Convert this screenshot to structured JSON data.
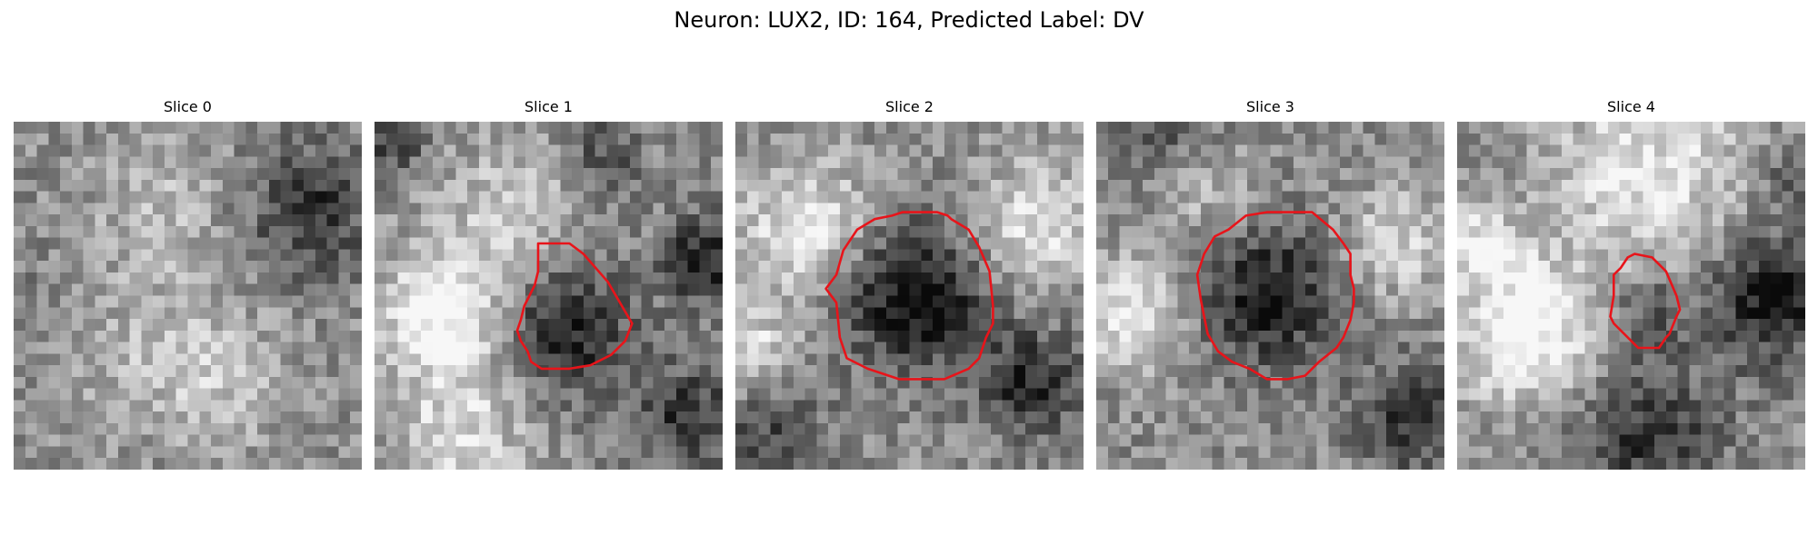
{
  "figure": {
    "title": "Neuron: LUX2, ID: 164, Predicted Label: DV"
  },
  "slices": [
    {
      "label": "Slice 0",
      "has_roi": false,
      "seed": 11,
      "dark_blobs": [
        [
          0.85,
          0.25,
          0.18,
          0.35
        ],
        [
          0.15,
          0.55,
          0.2,
          0.15
        ],
        [
          0.5,
          0.3,
          0.25,
          0.1
        ]
      ],
      "bright_blobs": [
        [
          0.45,
          0.25,
          0.22,
          0.25
        ],
        [
          0.3,
          0.6,
          0.25,
          0.2
        ],
        [
          0.6,
          0.75,
          0.2,
          0.2
        ]
      ],
      "roi": []
    },
    {
      "label": "Slice 1",
      "has_roi": true,
      "seed": 23,
      "dark_blobs": [
        [
          0.65,
          0.1,
          0.12,
          0.25
        ],
        [
          0.95,
          0.4,
          0.12,
          0.45
        ],
        [
          0.55,
          0.6,
          0.18,
          0.45
        ],
        [
          0.9,
          0.85,
          0.15,
          0.35
        ],
        [
          0.05,
          0.05,
          0.1,
          0.3
        ]
      ],
      "bright_blobs": [
        [
          0.2,
          0.55,
          0.18,
          0.5
        ],
        [
          0.4,
          0.25,
          0.2,
          0.25
        ],
        [
          0.25,
          0.9,
          0.2,
          0.3
        ]
      ],
      "roi": [
        [
          0.47,
          0.35
        ],
        [
          0.56,
          0.35
        ],
        [
          0.6,
          0.38
        ],
        [
          0.67,
          0.46
        ],
        [
          0.74,
          0.58
        ],
        [
          0.72,
          0.63
        ],
        [
          0.68,
          0.67
        ],
        [
          0.62,
          0.7
        ],
        [
          0.56,
          0.71
        ],
        [
          0.48,
          0.71
        ],
        [
          0.45,
          0.69
        ],
        [
          0.44,
          0.66
        ],
        [
          0.42,
          0.63
        ],
        [
          0.41,
          0.6
        ],
        [
          0.42,
          0.57
        ],
        [
          0.43,
          0.53
        ],
        [
          0.46,
          0.47
        ],
        [
          0.47,
          0.43
        ]
      ]
    },
    {
      "label": "Slice 2",
      "has_roi": true,
      "seed": 37,
      "dark_blobs": [
        [
          0.52,
          0.5,
          0.2,
          0.55
        ],
        [
          0.85,
          0.75,
          0.15,
          0.4
        ],
        [
          0.1,
          0.9,
          0.15,
          0.25
        ]
      ],
      "bright_blobs": [
        [
          0.2,
          0.3,
          0.2,
          0.35
        ],
        [
          0.85,
          0.3,
          0.18,
          0.35
        ],
        [
          0.05,
          0.65,
          0.12,
          0.3
        ]
      ],
      "roi": [
        [
          0.48,
          0.26
        ],
        [
          0.58,
          0.26
        ],
        [
          0.61,
          0.27
        ],
        [
          0.62,
          0.28
        ],
        [
          0.67,
          0.31
        ],
        [
          0.7,
          0.36
        ],
        [
          0.73,
          0.43
        ],
        [
          0.74,
          0.53
        ],
        [
          0.74,
          0.58
        ],
        [
          0.72,
          0.62
        ],
        [
          0.7,
          0.68
        ],
        [
          0.67,
          0.71
        ],
        [
          0.6,
          0.74
        ],
        [
          0.47,
          0.74
        ],
        [
          0.38,
          0.71
        ],
        [
          0.32,
          0.68
        ],
        [
          0.3,
          0.62
        ],
        [
          0.29,
          0.52
        ],
        [
          0.26,
          0.48
        ],
        [
          0.29,
          0.44
        ],
        [
          0.31,
          0.37
        ],
        [
          0.35,
          0.31
        ],
        [
          0.4,
          0.28
        ],
        [
          0.45,
          0.27
        ]
      ]
    },
    {
      "label": "Slice 3",
      "has_roi": true,
      "seed": 53,
      "dark_blobs": [
        [
          0.5,
          0.5,
          0.2,
          0.45
        ],
        [
          0.9,
          0.85,
          0.15,
          0.35
        ],
        [
          0.2,
          0.05,
          0.15,
          0.2
        ]
      ],
      "bright_blobs": [
        [
          0.1,
          0.55,
          0.15,
          0.4
        ],
        [
          0.85,
          0.35,
          0.15,
          0.3
        ],
        [
          0.3,
          0.2,
          0.15,
          0.2
        ]
      ],
      "roi": [
        [
          0.49,
          0.26
        ],
        [
          0.62,
          0.26
        ],
        [
          0.68,
          0.31
        ],
        [
          0.71,
          0.35
        ],
        [
          0.73,
          0.38
        ],
        [
          0.73,
          0.44
        ],
        [
          0.74,
          0.48
        ],
        [
          0.74,
          0.52
        ],
        [
          0.73,
          0.57
        ],
        [
          0.71,
          0.62
        ],
        [
          0.69,
          0.65
        ],
        [
          0.64,
          0.69
        ],
        [
          0.6,
          0.73
        ],
        [
          0.55,
          0.74
        ],
        [
          0.49,
          0.74
        ],
        [
          0.44,
          0.71
        ],
        [
          0.39,
          0.69
        ],
        [
          0.35,
          0.66
        ],
        [
          0.32,
          0.61
        ],
        [
          0.31,
          0.56
        ],
        [
          0.3,
          0.51
        ],
        [
          0.29,
          0.44
        ],
        [
          0.31,
          0.38
        ],
        [
          0.34,
          0.33
        ],
        [
          0.38,
          0.31
        ],
        [
          0.43,
          0.27
        ]
      ]
    },
    {
      "label": "Slice 4",
      "has_roi": true,
      "seed": 71,
      "dark_blobs": [
        [
          0.9,
          0.5,
          0.18,
          0.5
        ],
        [
          0.55,
          0.9,
          0.2,
          0.35
        ],
        [
          0.55,
          0.55,
          0.12,
          0.25
        ],
        [
          0.95,
          0.15,
          0.1,
          0.2
        ]
      ],
      "bright_blobs": [
        [
          0.55,
          0.15,
          0.3,
          0.35
        ],
        [
          0.2,
          0.6,
          0.2,
          0.5
        ],
        [
          0.05,
          0.35,
          0.12,
          0.3
        ]
      ],
      "roi": [
        [
          0.49,
          0.39
        ],
        [
          0.51,
          0.38
        ],
        [
          0.56,
          0.39
        ],
        [
          0.6,
          0.43
        ],
        [
          0.63,
          0.5
        ],
        [
          0.64,
          0.54
        ],
        [
          0.63,
          0.56
        ],
        [
          0.61,
          0.61
        ],
        [
          0.6,
          0.62
        ],
        [
          0.58,
          0.65
        ],
        [
          0.56,
          0.65
        ],
        [
          0.52,
          0.65
        ],
        [
          0.5,
          0.63
        ],
        [
          0.47,
          0.6
        ],
        [
          0.45,
          0.58
        ],
        [
          0.44,
          0.56
        ],
        [
          0.45,
          0.5
        ],
        [
          0.45,
          0.44
        ],
        [
          0.47,
          0.42
        ]
      ]
    }
  ],
  "style": {
    "roi_color": "#e8141a",
    "image_grid": 30
  }
}
